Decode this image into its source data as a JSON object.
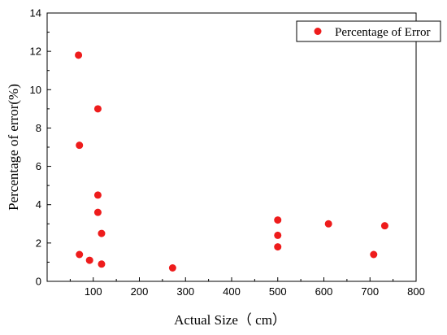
{
  "chart_data": {
    "type": "scatter",
    "title": "",
    "xlabel": "Actual Size（ cm）",
    "ylabel": "Percentage of error(%)",
    "xlim": [
      0,
      800
    ],
    "ylim": [
      0,
      14
    ],
    "x_ticks": [
      100,
      200,
      300,
      400,
      500,
      600,
      700,
      800
    ],
    "x_tick_labels": [
      "100",
      "200",
      "300",
      "400",
      "500",
      "600",
      "700",
      "800"
    ],
    "y_ticks": [
      0,
      2,
      4,
      6,
      8,
      10,
      12,
      14
    ],
    "y_tick_labels": [
      "0",
      "2",
      "4",
      "6",
      "8",
      "10",
      "12",
      "14"
    ],
    "grid": false,
    "legend_position": "top-right",
    "series": [
      {
        "name": "Percentage of Error",
        "color": "#ee1c1c",
        "points": [
          {
            "x": 68,
            "y": 11.8
          },
          {
            "x": 70,
            "y": 7.1
          },
          {
            "x": 70,
            "y": 1.4
          },
          {
            "x": 92,
            "y": 1.1
          },
          {
            "x": 110,
            "y": 9.0
          },
          {
            "x": 110,
            "y": 4.5
          },
          {
            "x": 110,
            "y": 3.6
          },
          {
            "x": 118,
            "y": 2.5
          },
          {
            "x": 118,
            "y": 0.9
          },
          {
            "x": 272,
            "y": 0.7
          },
          {
            "x": 500,
            "y": 3.2
          },
          {
            "x": 500,
            "y": 2.4
          },
          {
            "x": 500,
            "y": 1.8
          },
          {
            "x": 610,
            "y": 3.0
          },
          {
            "x": 708,
            "y": 1.4
          },
          {
            "x": 732,
            "y": 2.9
          }
        ]
      }
    ]
  }
}
